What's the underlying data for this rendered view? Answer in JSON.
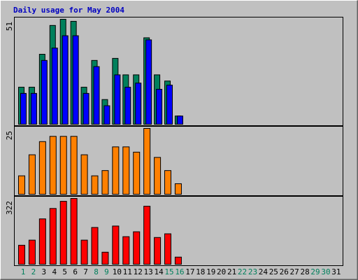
{
  "chart_data": [
    {
      "type": "bar",
      "title": "Daily usage for May 2004",
      "ylim": [
        0,
        51
      ],
      "yticks": [
        51
      ],
      "series": [
        {
          "color": "#00805c",
          "values": [
            18,
            18,
            34,
            48,
            51,
            50,
            18,
            31,
            12,
            32,
            24,
            24,
            42,
            24,
            21,
            4,
            null,
            null,
            null,
            null,
            null,
            null,
            null,
            null,
            null,
            null,
            null,
            null,
            null,
            null,
            null
          ]
        },
        {
          "color": "#0000ff",
          "values": [
            15,
            15,
            31,
            37,
            43,
            43,
            15,
            28,
            9,
            24,
            18,
            20,
            41,
            17,
            19,
            4,
            null,
            null,
            null,
            null,
            null,
            null,
            null,
            null,
            null,
            null,
            null,
            null,
            null,
            null,
            null
          ]
        }
      ]
    },
    {
      "type": "bar",
      "ylim": [
        0,
        25
      ],
      "yticks": [
        25
      ],
      "series": [
        {
          "color": "#ff8000",
          "values": [
            7,
            15,
            20,
            22,
            22,
            22,
            15,
            7,
            9,
            18,
            18,
            16,
            25,
            14,
            9,
            4,
            null,
            null,
            null,
            null,
            null,
            null,
            null,
            null,
            null,
            null,
            null,
            null,
            null,
            null,
            null
          ]
        }
      ]
    },
    {
      "type": "bar",
      "ylim": [
        0,
        322
      ],
      "yticks": [
        322
      ],
      "categories": [
        "1",
        "2",
        "3",
        "4",
        "5",
        "6",
        "7",
        "8",
        "9",
        "10",
        "11",
        "12",
        "13",
        "14",
        "15",
        "16",
        "17",
        "18",
        "19",
        "20",
        "21",
        "22",
        "23",
        "24",
        "25",
        "26",
        "27",
        "28",
        "29",
        "30",
        "31"
      ],
      "weekends": [
        0,
        1,
        7,
        8,
        14,
        15,
        21,
        22,
        28,
        29
      ],
      "weekend_color": "#00805c",
      "series": [
        {
          "color": "#ff0000",
          "values": [
            93,
            118,
            222,
            273,
            308,
            322,
            118,
            180,
            59,
            187,
            135,
            159,
            284,
            131,
            149,
            35,
            null,
            null,
            null,
            null,
            null,
            null,
            null,
            null,
            null,
            null,
            null,
            null,
            null,
            null,
            null
          ]
        }
      ]
    }
  ]
}
